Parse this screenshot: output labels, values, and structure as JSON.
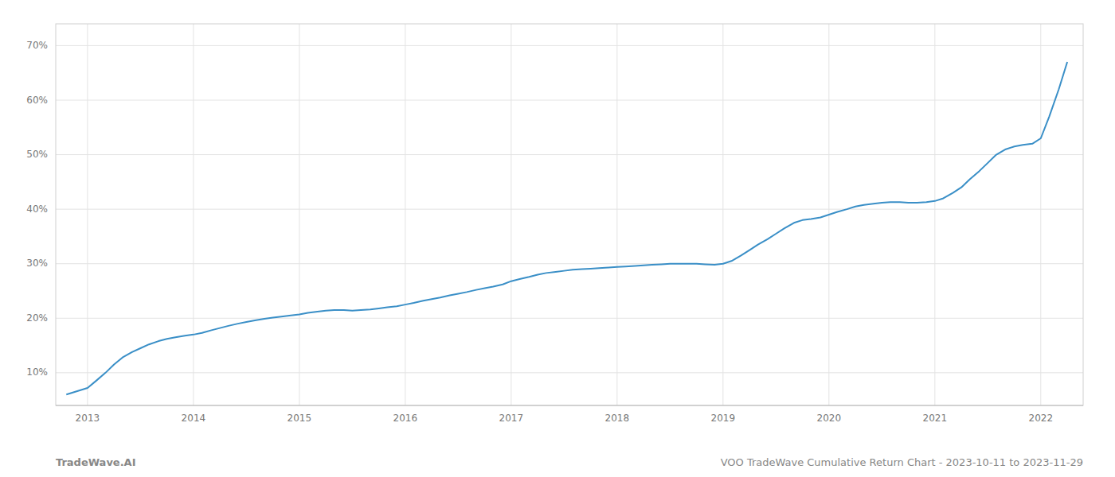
{
  "chart_data": {
    "type": "line",
    "annotations": [
      "TradeWave.AI",
      "VOO TradeWave Cumulative Return Chart - 2023-10-11 to 2023-11-29"
    ],
    "x": [
      2012.8,
      2013.0,
      2013.08,
      2013.17,
      2013.25,
      2013.33,
      2013.42,
      2013.5,
      2013.58,
      2013.67,
      2013.75,
      2013.83,
      2013.92,
      2014.0,
      2014.08,
      2014.17,
      2014.25,
      2014.33,
      2014.42,
      2014.5,
      2014.58,
      2014.67,
      2014.75,
      2014.83,
      2014.92,
      2015.0,
      2015.08,
      2015.17,
      2015.25,
      2015.33,
      2015.42,
      2015.5,
      2015.58,
      2015.67,
      2015.75,
      2015.83,
      2015.92,
      2016.0,
      2016.08,
      2016.17,
      2016.25,
      2016.33,
      2016.42,
      2016.5,
      2016.58,
      2016.67,
      2016.75,
      2016.83,
      2016.92,
      2017.0,
      2017.08,
      2017.17,
      2017.25,
      2017.33,
      2017.42,
      2017.5,
      2017.58,
      2017.67,
      2017.75,
      2017.83,
      2017.92,
      2018.0,
      2018.08,
      2018.17,
      2018.25,
      2018.33,
      2018.42,
      2018.5,
      2018.58,
      2018.67,
      2018.75,
      2018.83,
      2018.92,
      2019.0,
      2019.08,
      2019.17,
      2019.25,
      2019.33,
      2019.42,
      2019.5,
      2019.58,
      2019.67,
      2019.75,
      2019.83,
      2019.92,
      2020.0,
      2020.08,
      2020.17,
      2020.25,
      2020.33,
      2020.42,
      2020.5,
      2020.58,
      2020.67,
      2020.75,
      2020.83,
      2020.92,
      2021.0,
      2021.08,
      2021.17,
      2021.25,
      2021.33,
      2021.42,
      2021.5,
      2021.58,
      2021.67,
      2021.75,
      2021.83,
      2021.92,
      2022.0,
      2022.08,
      2022.17,
      2022.25
    ],
    "values": [
      6.0,
      7.2,
      8.5,
      10.0,
      11.5,
      12.8,
      13.8,
      14.5,
      15.2,
      15.8,
      16.2,
      16.5,
      16.8,
      17.0,
      17.3,
      17.8,
      18.2,
      18.6,
      19.0,
      19.3,
      19.6,
      19.9,
      20.1,
      20.3,
      20.5,
      20.7,
      21.0,
      21.2,
      21.4,
      21.5,
      21.5,
      21.4,
      21.5,
      21.6,
      21.8,
      22.0,
      22.2,
      22.5,
      22.8,
      23.2,
      23.5,
      23.8,
      24.2,
      24.5,
      24.8,
      25.2,
      25.5,
      25.8,
      26.2,
      26.8,
      27.2,
      27.6,
      28.0,
      28.3,
      28.5,
      28.7,
      28.9,
      29.0,
      29.1,
      29.2,
      29.3,
      29.4,
      29.5,
      29.6,
      29.7,
      29.8,
      29.9,
      30.0,
      30.0,
      30.0,
      30.0,
      29.9,
      29.8,
      30.0,
      30.5,
      31.5,
      32.5,
      33.5,
      34.5,
      35.5,
      36.5,
      37.5,
      38.0,
      38.2,
      38.5,
      39.0,
      39.5,
      40.0,
      40.5,
      40.8,
      41.0,
      41.2,
      41.3,
      41.3,
      41.2,
      41.2,
      41.3,
      41.5,
      42.0,
      43.0,
      44.0,
      45.5,
      47.0,
      48.5,
      50.0,
      51.0,
      51.5,
      51.8,
      52.0,
      53.0,
      57.0,
      62.0,
      67.0
    ],
    "color": "#3a8fc7",
    "xlim": [
      2012.7,
      2022.4
    ],
    "xticks": [
      2013,
      2014,
      2015,
      2016,
      2017,
      2018,
      2019,
      2020,
      2021,
      2022
    ],
    "ylim": [
      4,
      74
    ],
    "yticks": [
      {
        "value": 10,
        "label": "10%"
      },
      {
        "value": 20,
        "label": "20%"
      },
      {
        "value": 30,
        "label": "30%"
      },
      {
        "value": 40,
        "label": "40%"
      },
      {
        "value": 50,
        "label": "50%"
      },
      {
        "value": 60,
        "label": "60%"
      },
      {
        "value": 70,
        "label": "70%"
      }
    ],
    "grid": true
  }
}
